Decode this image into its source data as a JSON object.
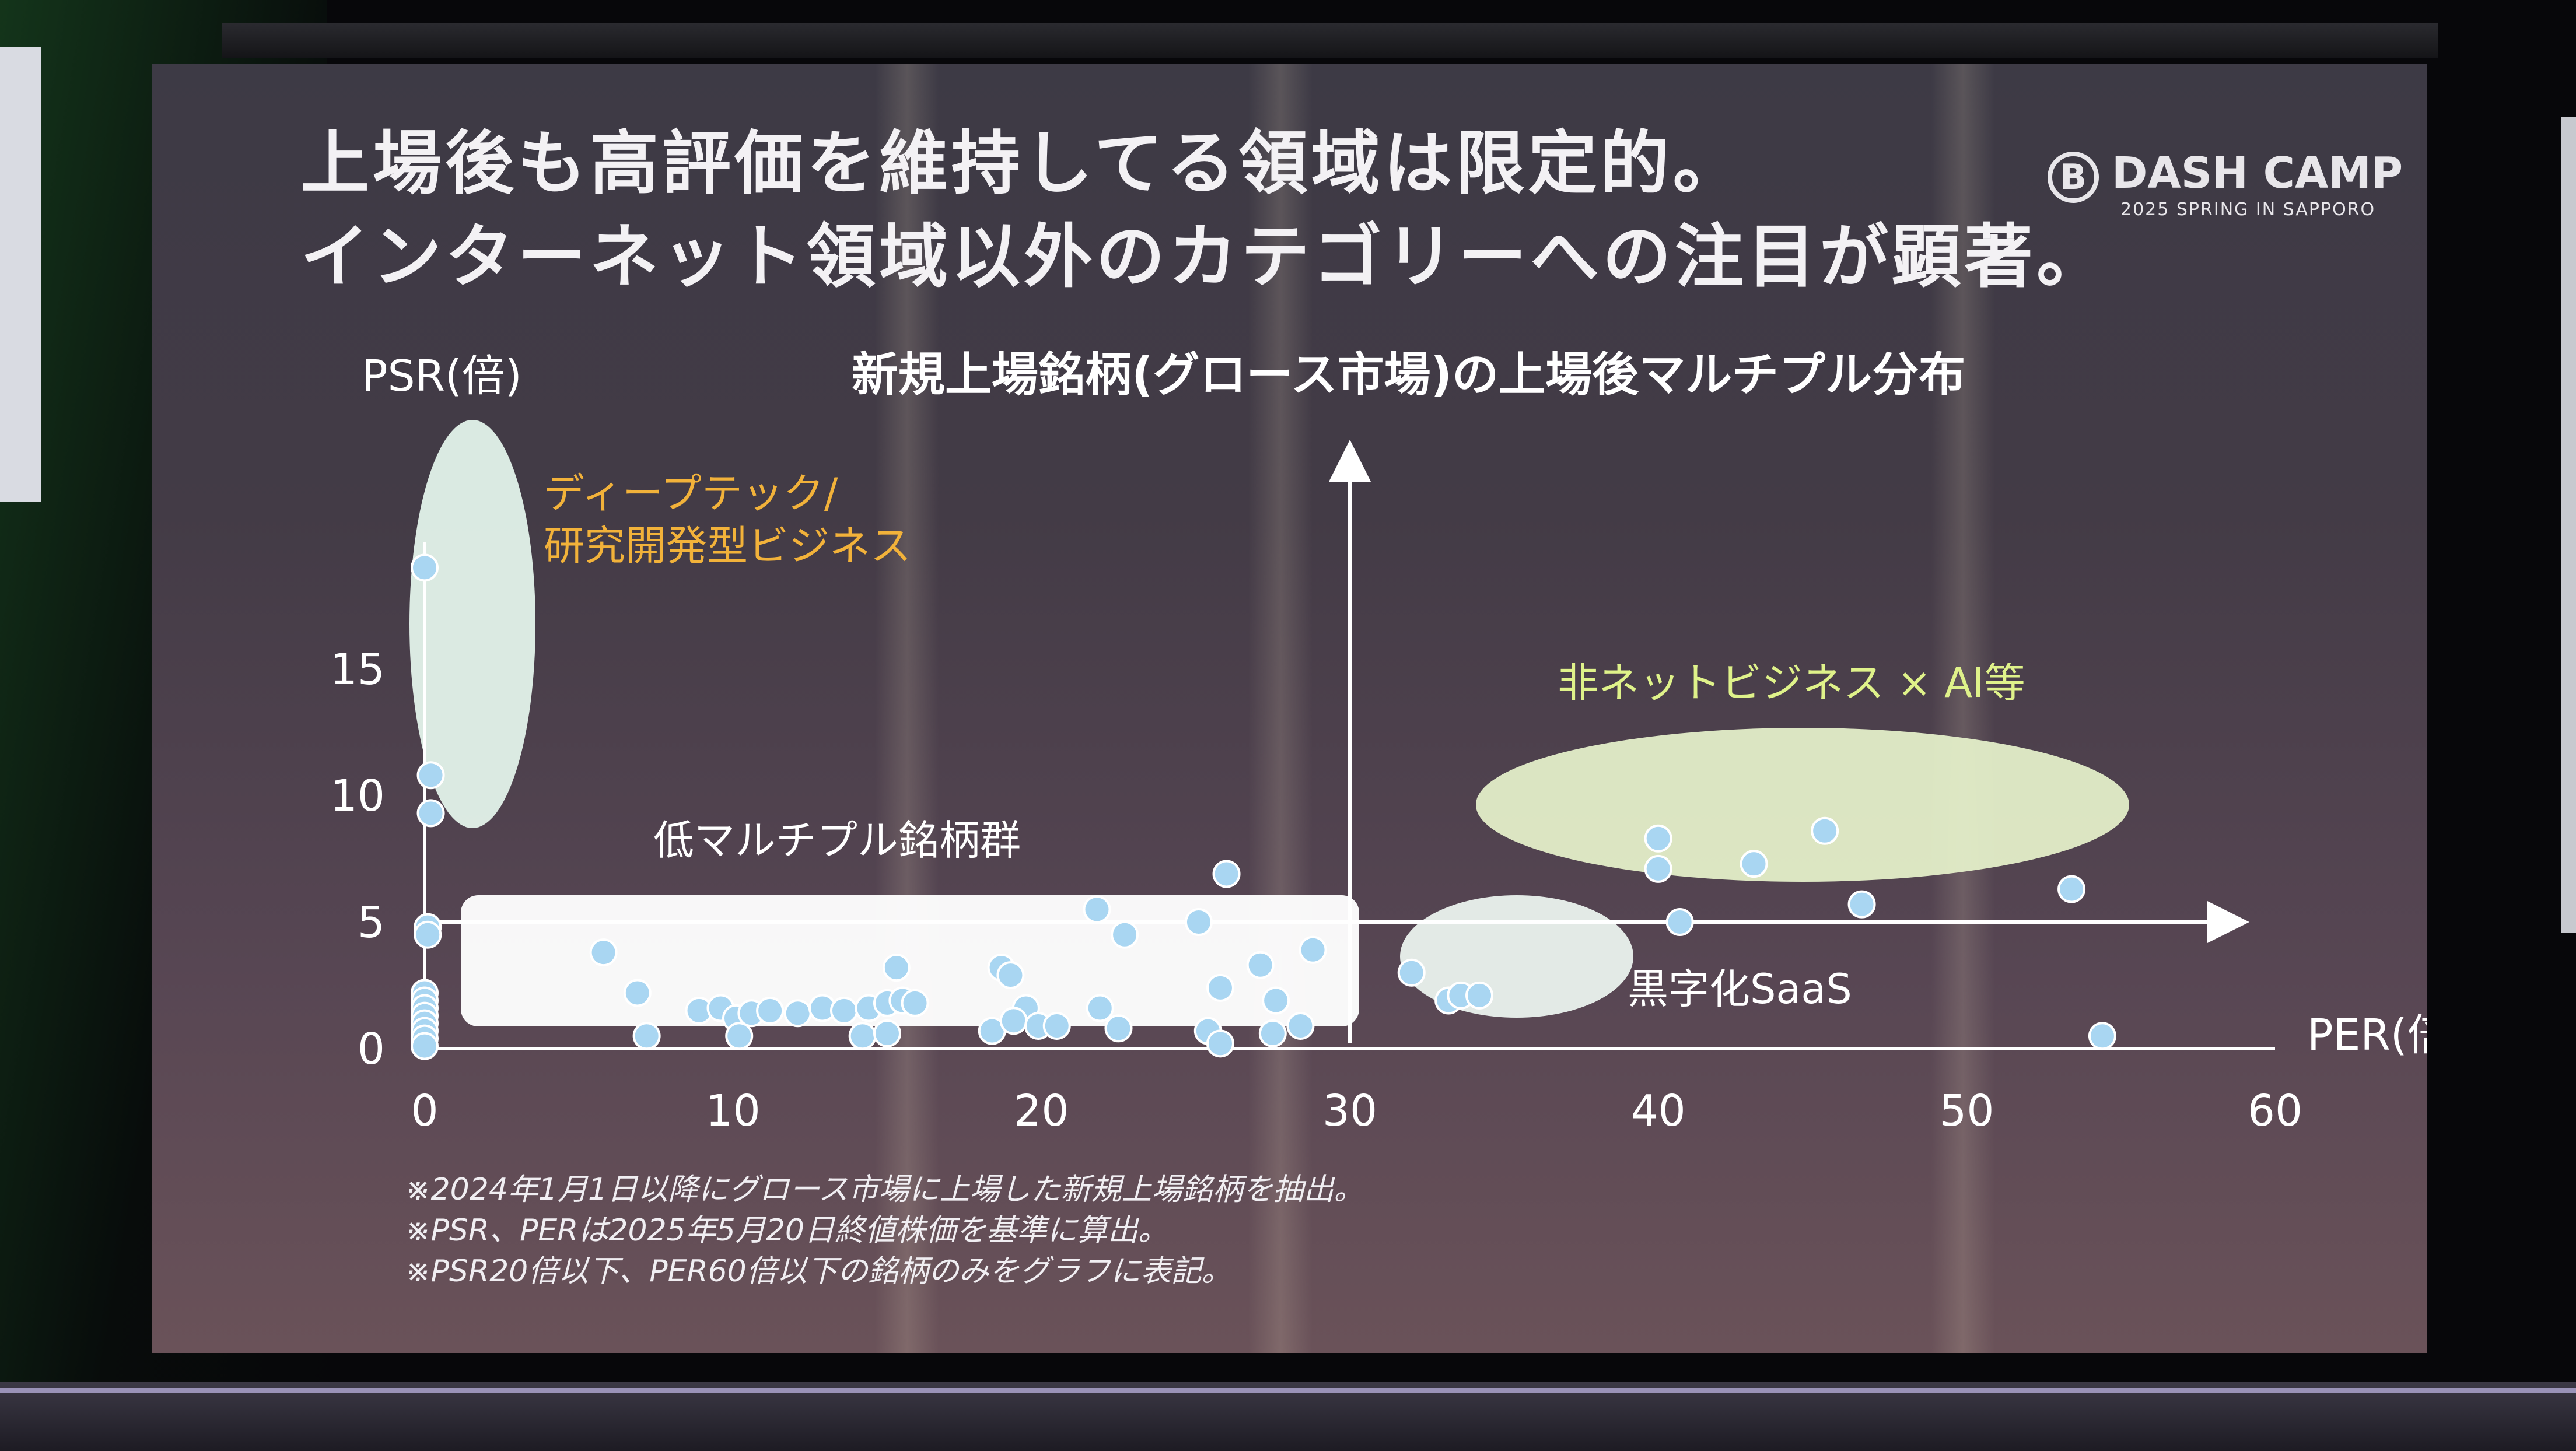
{
  "slide": {
    "heading": [
      "上場後も高評価を維持してる領域は限定的。",
      "インターネット領域以外のカテゴリーへの注目が顕著。"
    ],
    "logo": {
      "name": "DASH CAMP",
      "subtitle": "2025 SPRING IN SAPPORO"
    },
    "footnotes": [
      "※2024年1月1日以降にグロース市場に上場した新規上場銘柄を抽出。",
      "※PSR、PERは2025年5月20日終値株価を基準に算出。",
      "※PSR20倍以下、PER60倍以下の銘柄のみをグラフに表記。"
    ]
  },
  "chart_data": {
    "type": "scatter",
    "title": "新規上場銘柄(グロース市場)の上場後マルチプル分布",
    "xlabel": "PER(倍)",
    "ylabel": "PSR(倍)",
    "xlim": [
      0,
      60
    ],
    "ylim": [
      0,
      20
    ],
    "xticks": [
      "0",
      "10",
      "20",
      "30",
      "40",
      "50",
      "60"
    ],
    "yticks": [
      "0",
      "5",
      "10",
      "15"
    ],
    "grid": false,
    "point_color": "#a9d6f2",
    "points": [
      [
        0,
        19.0
      ],
      [
        0.2,
        10.8
      ],
      [
        0.2,
        9.3
      ],
      [
        0.1,
        4.8
      ],
      [
        0.1,
        4.5
      ],
      [
        0,
        2.2
      ],
      [
        0,
        1.9
      ],
      [
        0,
        1.6
      ],
      [
        0,
        1.3
      ],
      [
        0,
        1.0
      ],
      [
        0,
        0.7
      ],
      [
        0,
        0.4
      ],
      [
        0,
        0.1
      ],
      [
        5.8,
        3.8
      ],
      [
        6.9,
        2.2
      ],
      [
        7.2,
        0.5
      ],
      [
        8.9,
        1.5
      ],
      [
        9.6,
        1.6
      ],
      [
        10.1,
        1.2
      ],
      [
        10.6,
        1.4
      ],
      [
        10.2,
        0.5
      ],
      [
        11.2,
        1.5
      ],
      [
        12.1,
        1.4
      ],
      [
        12.9,
        1.6
      ],
      [
        13.6,
        1.5
      ],
      [
        14.2,
        0.5
      ],
      [
        14.4,
        1.6
      ],
      [
        15.0,
        1.8
      ],
      [
        15.3,
        3.2
      ],
      [
        15.0,
        0.6
      ],
      [
        15.5,
        1.9
      ],
      [
        15.9,
        1.8
      ],
      [
        18.4,
        0.7
      ],
      [
        18.7,
        3.2
      ],
      [
        19.0,
        2.9
      ],
      [
        19.5,
        1.6
      ],
      [
        19.1,
        1.1
      ],
      [
        19.9,
        0.9
      ],
      [
        20.5,
        0.9
      ],
      [
        21.8,
        5.5
      ],
      [
        21.9,
        1.6
      ],
      [
        22.5,
        0.8
      ],
      [
        22.7,
        4.5
      ],
      [
        26.0,
        6.9
      ],
      [
        25.1,
        5.0
      ],
      [
        25.8,
        2.4
      ],
      [
        25.4,
        0.7
      ],
      [
        25.8,
        0.2
      ],
      [
        27.1,
        3.3
      ],
      [
        27.6,
        1.9
      ],
      [
        27.5,
        0.6
      ],
      [
        28.4,
        0.9
      ],
      [
        28.8,
        3.9
      ],
      [
        32.0,
        3.0
      ],
      [
        33.2,
        1.9
      ],
      [
        33.6,
        2.1
      ],
      [
        34.2,
        2.1
      ],
      [
        40.0,
        8.3
      ],
      [
        40.0,
        7.1
      ],
      [
        40.7,
        5.0
      ],
      [
        43.1,
        7.3
      ],
      [
        45.4,
        8.6
      ],
      [
        46.6,
        5.7
      ],
      [
        53.4,
        6.3
      ],
      [
        54.4,
        0.5
      ]
    ],
    "threshold_lines": [
      {
        "axis": "x",
        "value": 30
      },
      {
        "axis": "y",
        "value": 5
      }
    ],
    "annotations": [
      {
        "text": "ディープテック/",
        "color": "#f2b23a"
      },
      {
        "text": "研究開発型ビジネス",
        "color": "#f2b23a"
      },
      {
        "text": "非ネットビジネス × AI等",
        "color": "#dff28a"
      },
      {
        "text": "低マルチプル銘柄群",
        "color": "#ffffff"
      },
      {
        "text": "黒字化SaaS",
        "color": "#ffffff"
      }
    ]
  }
}
